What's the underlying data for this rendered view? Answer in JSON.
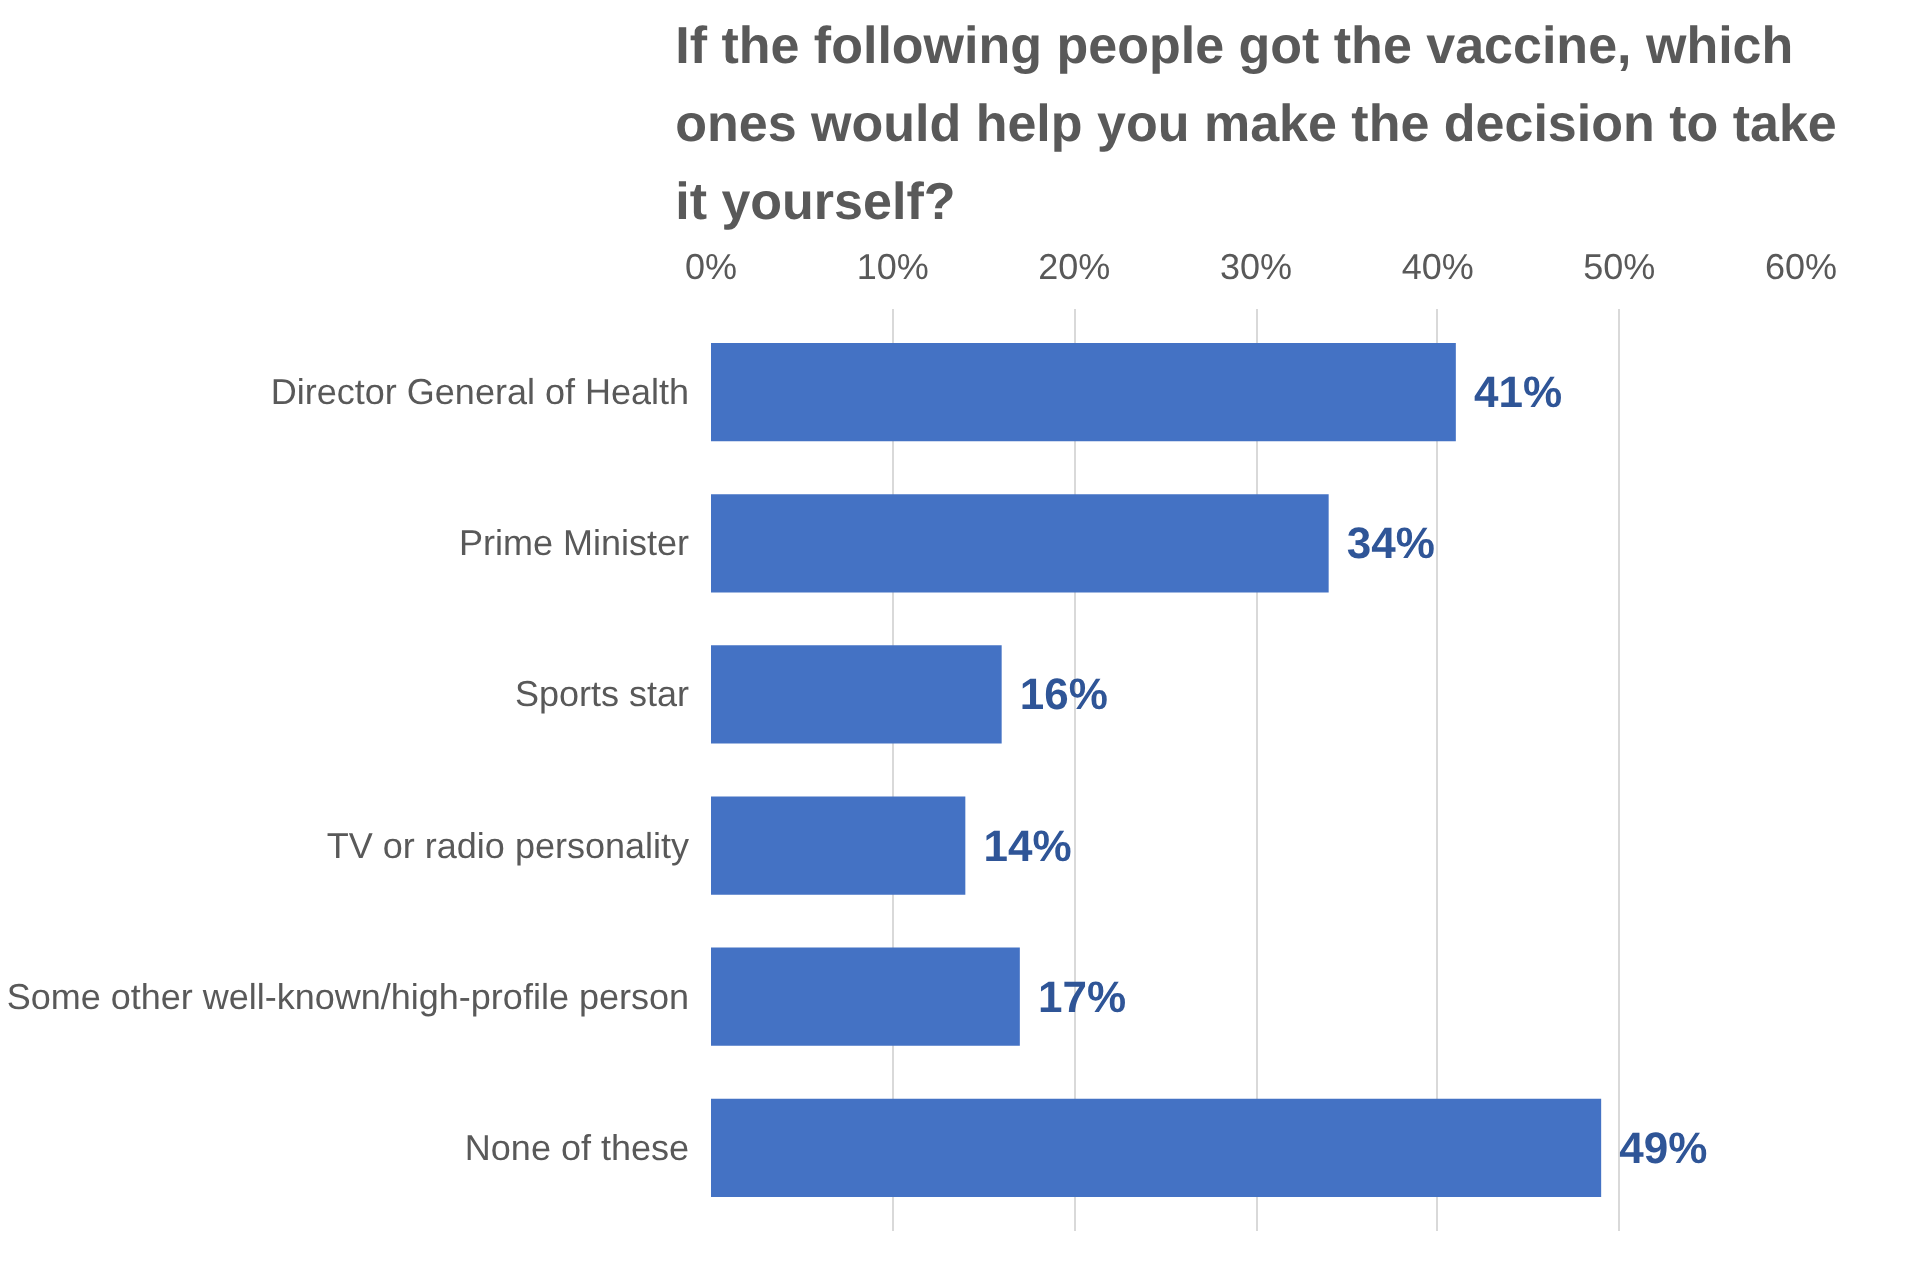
{
  "chart_data": {
    "type": "bar",
    "orientation": "horizontal",
    "title": "If the following people got the vaccine, which ones would help you make the decision to take it yourself?",
    "categories": [
      "Director General of Health",
      "Prime Minister",
      "Sports star",
      "TV or radio personality",
      "Some other well-known/high-profile person",
      "None of these"
    ],
    "values": [
      41,
      34,
      16,
      14,
      17,
      49
    ],
    "value_labels": [
      "41%",
      "34%",
      "16%",
      "14%",
      "17%",
      "49%"
    ],
    "color": "#4472c4",
    "xlim": [
      0,
      60
    ],
    "xticks": [
      {
        "value": 0,
        "label": "0%"
      },
      {
        "value": 10,
        "label": "10%"
      },
      {
        "value": 20,
        "label": "20%"
      },
      {
        "value": 30,
        "label": "30%"
      },
      {
        "value": 40,
        "label": "40%"
      },
      {
        "value": 50,
        "label": "50%"
      },
      {
        "value": 60,
        "label": "60%"
      }
    ],
    "grid": "x"
  }
}
